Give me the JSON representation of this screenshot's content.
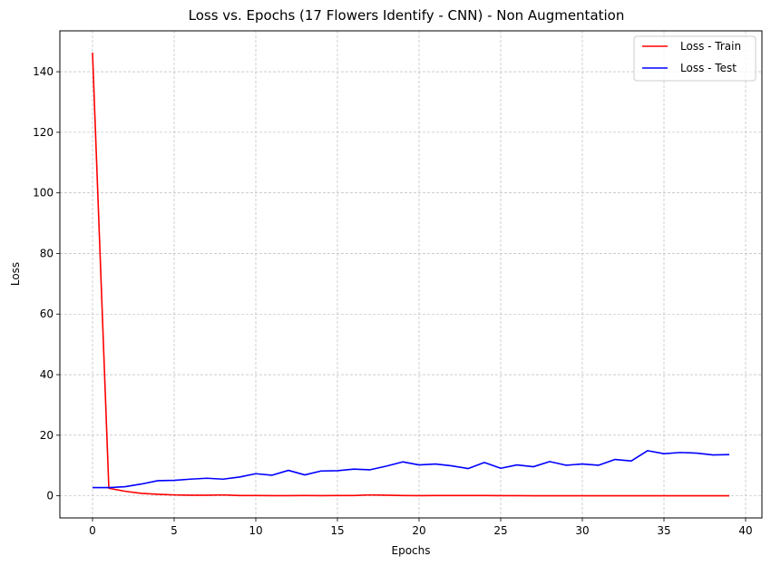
{
  "chart_data": {
    "type": "line",
    "title": "Loss vs. Epochs (17 Flowers Identify - CNN) - Non Augmentation",
    "xlabel": "Epochs",
    "ylabel": "Loss",
    "xlim": [
      -2,
      41
    ],
    "ylim": [
      -7.3,
      153.5
    ],
    "xticks": [
      0,
      5,
      10,
      15,
      20,
      25,
      30,
      35,
      40
    ],
    "yticks": [
      0,
      20,
      40,
      60,
      80,
      100,
      120,
      140
    ],
    "grid": true,
    "legend_position": "top-right",
    "x": [
      0,
      1,
      2,
      3,
      4,
      5,
      6,
      7,
      8,
      9,
      10,
      11,
      12,
      13,
      14,
      15,
      16,
      17,
      18,
      19,
      20,
      21,
      22,
      23,
      24,
      25,
      26,
      27,
      28,
      29,
      30,
      31,
      32,
      33,
      34,
      35,
      36,
      37,
      38,
      39
    ],
    "series": [
      {
        "name": "Loss - Train",
        "color": "#ff0000",
        "values": [
          146.3,
          2.5,
          1.5,
          0.8,
          0.5,
          0.3,
          0.2,
          0.2,
          0.3,
          0.1,
          0.1,
          0.05,
          0.05,
          0.1,
          0.05,
          0.1,
          0.1,
          0.3,
          0.2,
          0.1,
          0.05,
          0.1,
          0.1,
          0.1,
          0.1,
          0.05,
          0.05,
          0.02,
          0.02,
          0.02,
          0.02,
          0.02,
          0.02,
          0.02,
          0.02,
          0.01,
          0.01,
          0.01,
          0.02,
          0.02
        ]
      },
      {
        "name": "Loss - Test",
        "color": "#0000ff",
        "values": [
          2.7,
          2.7,
          3.0,
          3.9,
          5.0,
          5.1,
          5.5,
          5.8,
          5.5,
          6.2,
          7.3,
          6.8,
          8.4,
          6.9,
          8.2,
          8.3,
          8.8,
          8.6,
          9.8,
          11.2,
          10.2,
          10.5,
          9.9,
          9.0,
          11.0,
          9.1,
          10.2,
          9.6,
          11.3,
          10.1,
          10.5,
          10.1,
          12.0,
          11.5,
          14.9,
          13.9,
          14.3,
          14.1,
          13.5,
          13.6
        ]
      }
    ]
  }
}
